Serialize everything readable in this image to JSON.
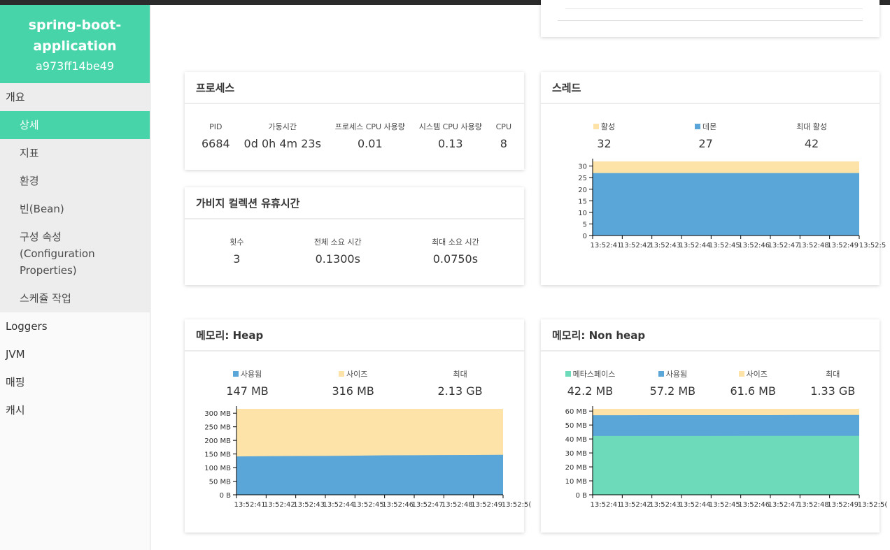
{
  "sidebar": {
    "app_name_line1": "spring-boot-",
    "app_name_line2": "application",
    "app_id": "a973ff14be49",
    "overview": "개요",
    "sub_items": [
      "상세",
      "지표",
      "환경",
      "빈(Bean)",
      "구성 속성(Configuration Properties)",
      "스케쥴 작업"
    ],
    "items": [
      "Loggers",
      "JVM",
      "매핑",
      "캐시"
    ]
  },
  "colors": {
    "accent": "#47d4a8",
    "active": "#fde3a7",
    "daemon": "#5ba6d8",
    "used": "#5ba6d8",
    "size": "#fde3a7",
    "metaspace": "#6ddbb9"
  },
  "process": {
    "title": "프로세스",
    "stats": [
      {
        "label": "PID",
        "value": "6684"
      },
      {
        "label": "가동시간",
        "value": "0d 0h 4m 23s"
      },
      {
        "label": "프로세스 CPU 사용량",
        "value": "0.01"
      },
      {
        "label": "시스템 CPU 사용량",
        "value": "0.13"
      },
      {
        "label": "CPU",
        "value": "8"
      }
    ]
  },
  "gc": {
    "title": "가비지 컬렉션 유휴시간",
    "stats": [
      {
        "label": "횟수",
        "value": "3"
      },
      {
        "label": "전체 소요 시간",
        "value": "0.1300s"
      },
      {
        "label": "최대 소요 시간",
        "value": "0.0750s"
      }
    ]
  },
  "threads": {
    "title": "스레드",
    "stats": [
      {
        "label": "활성",
        "value": "32"
      },
      {
        "label": "데몬",
        "value": "27"
      },
      {
        "label": "최대 활성",
        "value": "42"
      }
    ]
  },
  "heap": {
    "title": "메모리: Heap",
    "stats": [
      {
        "label": "사용됨",
        "value": "147 MB"
      },
      {
        "label": "사이즈",
        "value": "316 MB"
      },
      {
        "label": "최대",
        "value": "2.13 GB"
      }
    ]
  },
  "nonheap": {
    "title": "메모리: Non heap",
    "stats": [
      {
        "label": "메타스페이스",
        "value": "42.2 MB"
      },
      {
        "label": "사용됨",
        "value": "57.2 MB"
      },
      {
        "label": "사이즈",
        "value": "61.6 MB"
      },
      {
        "label": "최대",
        "value": "1.33 GB"
      }
    ]
  },
  "chart_data": [
    {
      "chart": "threads",
      "type": "area",
      "x": [
        "13:52:41",
        "13:52:42",
        "13:52:43",
        "13:52:44",
        "13:52:45",
        "13:52:46",
        "13:52:47",
        "13:52:48",
        "13:52:49",
        "13:52:5"
      ],
      "series": [
        {
          "name": "활성",
          "values": [
            32,
            32,
            32,
            32,
            32,
            32,
            32,
            32,
            32,
            32
          ]
        },
        {
          "name": "데몬",
          "values": [
            27,
            27,
            27,
            27,
            27,
            27,
            27,
            27,
            27,
            27
          ]
        }
      ],
      "yticks": [
        "0",
        "5",
        "10",
        "15",
        "20",
        "25",
        "30"
      ],
      "ylim": [
        0,
        32
      ]
    },
    {
      "chart": "heap",
      "type": "area",
      "x": [
        "13:52:41",
        "13:52:42",
        "13:52:43",
        "13:52:44",
        "13:52:45",
        "13:52:46",
        "13:52:47",
        "13:52:48",
        "13:52:49",
        "13:52:5("
      ],
      "series": [
        {
          "name": "사이즈",
          "values": [
            316,
            316,
            316,
            316,
            316,
            316,
            316,
            316,
            316,
            316
          ]
        },
        {
          "name": "사용됨",
          "values": [
            141,
            142,
            142.5,
            143,
            144,
            145,
            145.5,
            146,
            146.5,
            147
          ]
        }
      ],
      "yticks": [
        "0 B",
        "50 MB",
        "100 MB",
        "150 MB",
        "200 MB",
        "250 MB",
        "300 MB"
      ],
      "ylim": [
        0,
        316
      ]
    },
    {
      "chart": "nonheap",
      "type": "area",
      "x": [
        "13:52:41",
        "13:52:42",
        "13:52:43",
        "13:52:44",
        "13:52:45",
        "13:52:46",
        "13:52:47",
        "13:52:48",
        "13:52:49",
        "13:52:5("
      ],
      "series": [
        {
          "name": "사이즈",
          "values": [
            61.6,
            61.6,
            61.6,
            61.6,
            61.6,
            61.6,
            61.6,
            61.6,
            61.6,
            61.6
          ]
        },
        {
          "name": "사용됨",
          "values": [
            57,
            57,
            57.1,
            57.1,
            57.1,
            57.1,
            57.1,
            57.2,
            57.2,
            57.2
          ]
        },
        {
          "name": "메타스페이스",
          "values": [
            42.1,
            42.1,
            42.1,
            42.1,
            42.1,
            42.2,
            42.2,
            42.2,
            42.2,
            42.2
          ]
        }
      ],
      "yticks": [
        "0 B",
        "10 MB",
        "20 MB",
        "30 MB",
        "40 MB",
        "50 MB",
        "60 MB"
      ],
      "ylim": [
        0,
        61.6
      ]
    }
  ]
}
